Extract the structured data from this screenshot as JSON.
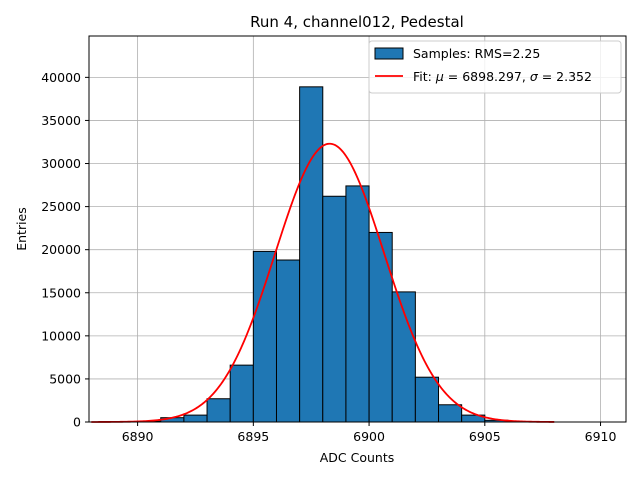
{
  "chart_data": {
    "type": "bar",
    "title": "Run 4, channel012, Pedestal",
    "xlabel": "ADC Counts",
    "ylabel": "Entries",
    "xlim": [
      6887.9,
      6911.1
    ],
    "ylim": [
      0,
      44800
    ],
    "xticks": [
      6890,
      6895,
      6900,
      6905,
      6910
    ],
    "yticks": [
      0,
      5000,
      10000,
      15000,
      20000,
      25000,
      30000,
      35000,
      40000
    ],
    "grid": true,
    "legend_position": "top-right",
    "histogram": {
      "name": "Samples: RMS=2.25",
      "color": "#1f77b4",
      "edge_color": "#000000",
      "bins": [
        {
          "x0": 6889.0,
          "x1": 6890.0,
          "value": 0
        },
        {
          "x0": 6890.0,
          "x1": 6891.0,
          "value": 100
        },
        {
          "x0": 6891.0,
          "x1": 6892.0,
          "value": 500
        },
        {
          "x0": 6892.0,
          "x1": 6893.0,
          "value": 800
        },
        {
          "x0": 6893.0,
          "x1": 6894.0,
          "value": 2700
        },
        {
          "x0": 6894.0,
          "x1": 6895.0,
          "value": 6600
        },
        {
          "x0": 6895.0,
          "x1": 6896.0,
          "value": 19800
        },
        {
          "x0": 6896.0,
          "x1": 6897.0,
          "value": 18800
        },
        {
          "x0": 6897.0,
          "x1": 6898.0,
          "value": 38900
        },
        {
          "x0": 6898.0,
          "x1": 6899.0,
          "value": 26200
        },
        {
          "x0": 6899.0,
          "x1": 6900.0,
          "value": 27400
        },
        {
          "x0": 6900.0,
          "x1": 6901.0,
          "value": 22000
        },
        {
          "x0": 6901.0,
          "x1": 6902.0,
          "value": 15100
        },
        {
          "x0": 6902.0,
          "x1": 6903.0,
          "value": 5200
        },
        {
          "x0": 6903.0,
          "x1": 6904.0,
          "value": 2000
        },
        {
          "x0": 6904.0,
          "x1": 6905.0,
          "value": 800
        },
        {
          "x0": 6905.0,
          "x1": 6906.0,
          "value": 200
        }
      ]
    },
    "fit": {
      "name": "Fit: μ = 6898.297, σ = 2.352",
      "name_prefix": "Fit: ",
      "mu_symbol": "μ",
      "mu_text": " = 6898.297, ",
      "sigma_symbol": "σ",
      "sigma_text": " = 2.352",
      "color": "#ff0000",
      "mu": 6898.297,
      "sigma": 2.352,
      "amplitude": 32300,
      "x_range": [
        6888,
        6908
      ]
    }
  }
}
